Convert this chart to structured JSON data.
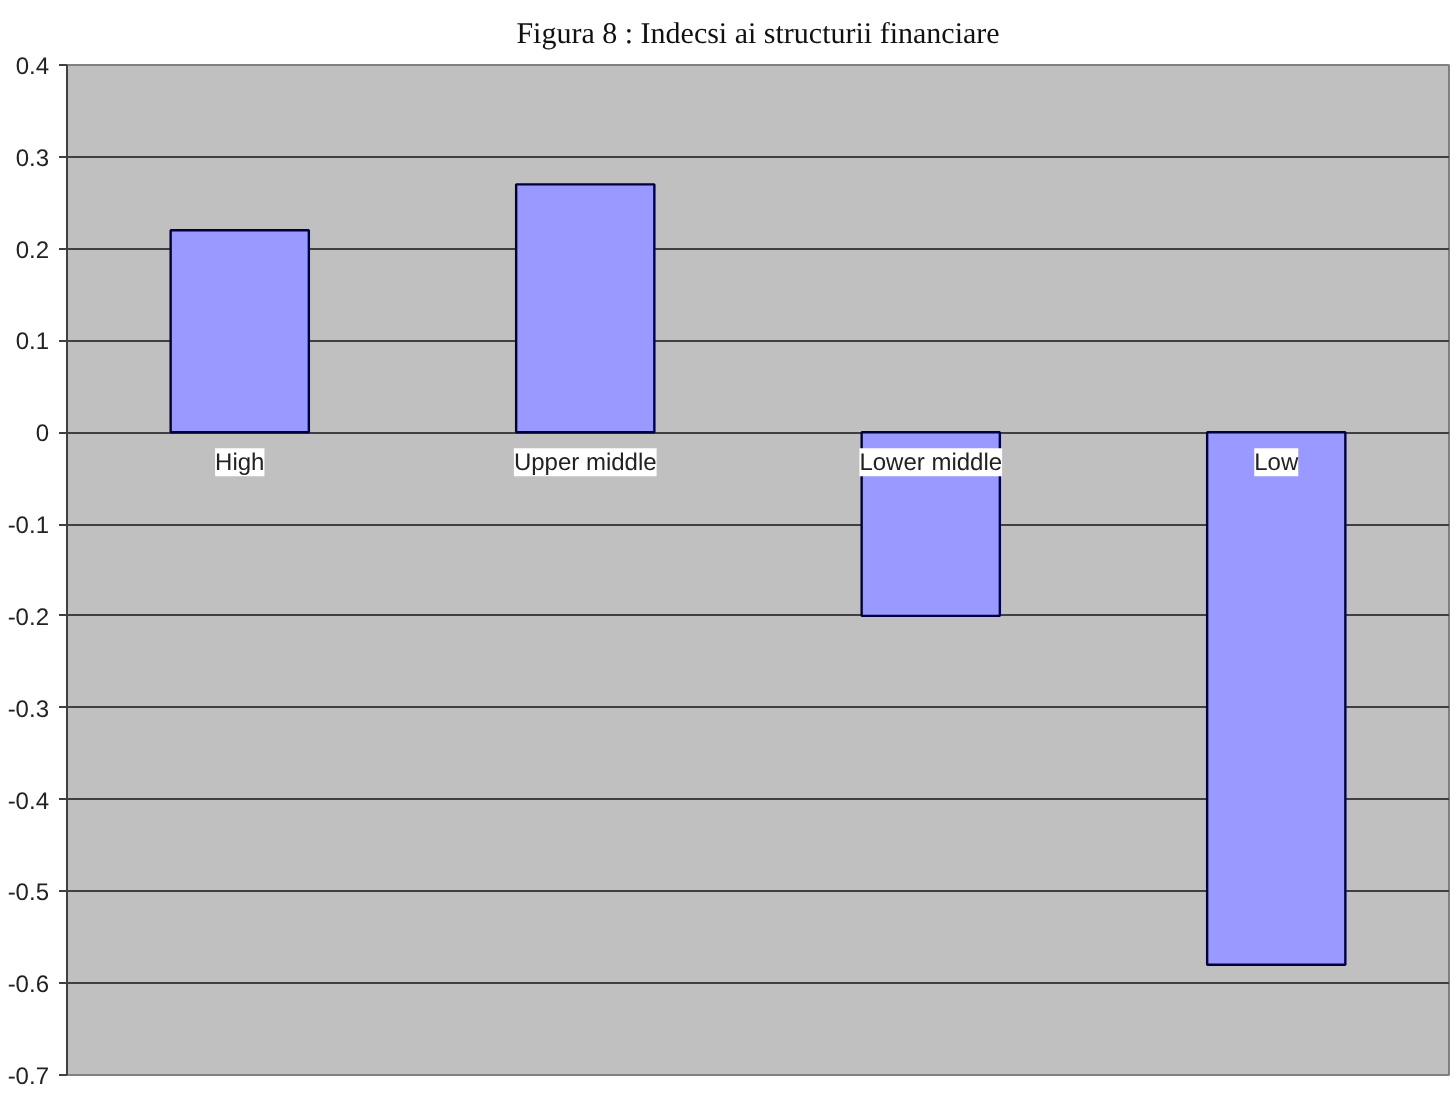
{
  "chart_data": {
    "type": "bar",
    "title": "Figura 8 : Indecsi ai structurii financiare",
    "categories": [
      "High",
      "Upper middle",
      "Lower middle",
      "Low"
    ],
    "values": [
      0.22,
      0.27,
      -0.2,
      -0.58
    ],
    "color": "#9999ff",
    "ylim": [
      -0.7,
      0.4
    ],
    "yticks": [
      -0.7,
      -0.6,
      -0.5,
      -0.4,
      -0.3,
      -0.2,
      -0.1,
      0,
      0.1,
      0.2,
      0.3,
      0.4
    ],
    "grid": "y",
    "legend": false
  }
}
